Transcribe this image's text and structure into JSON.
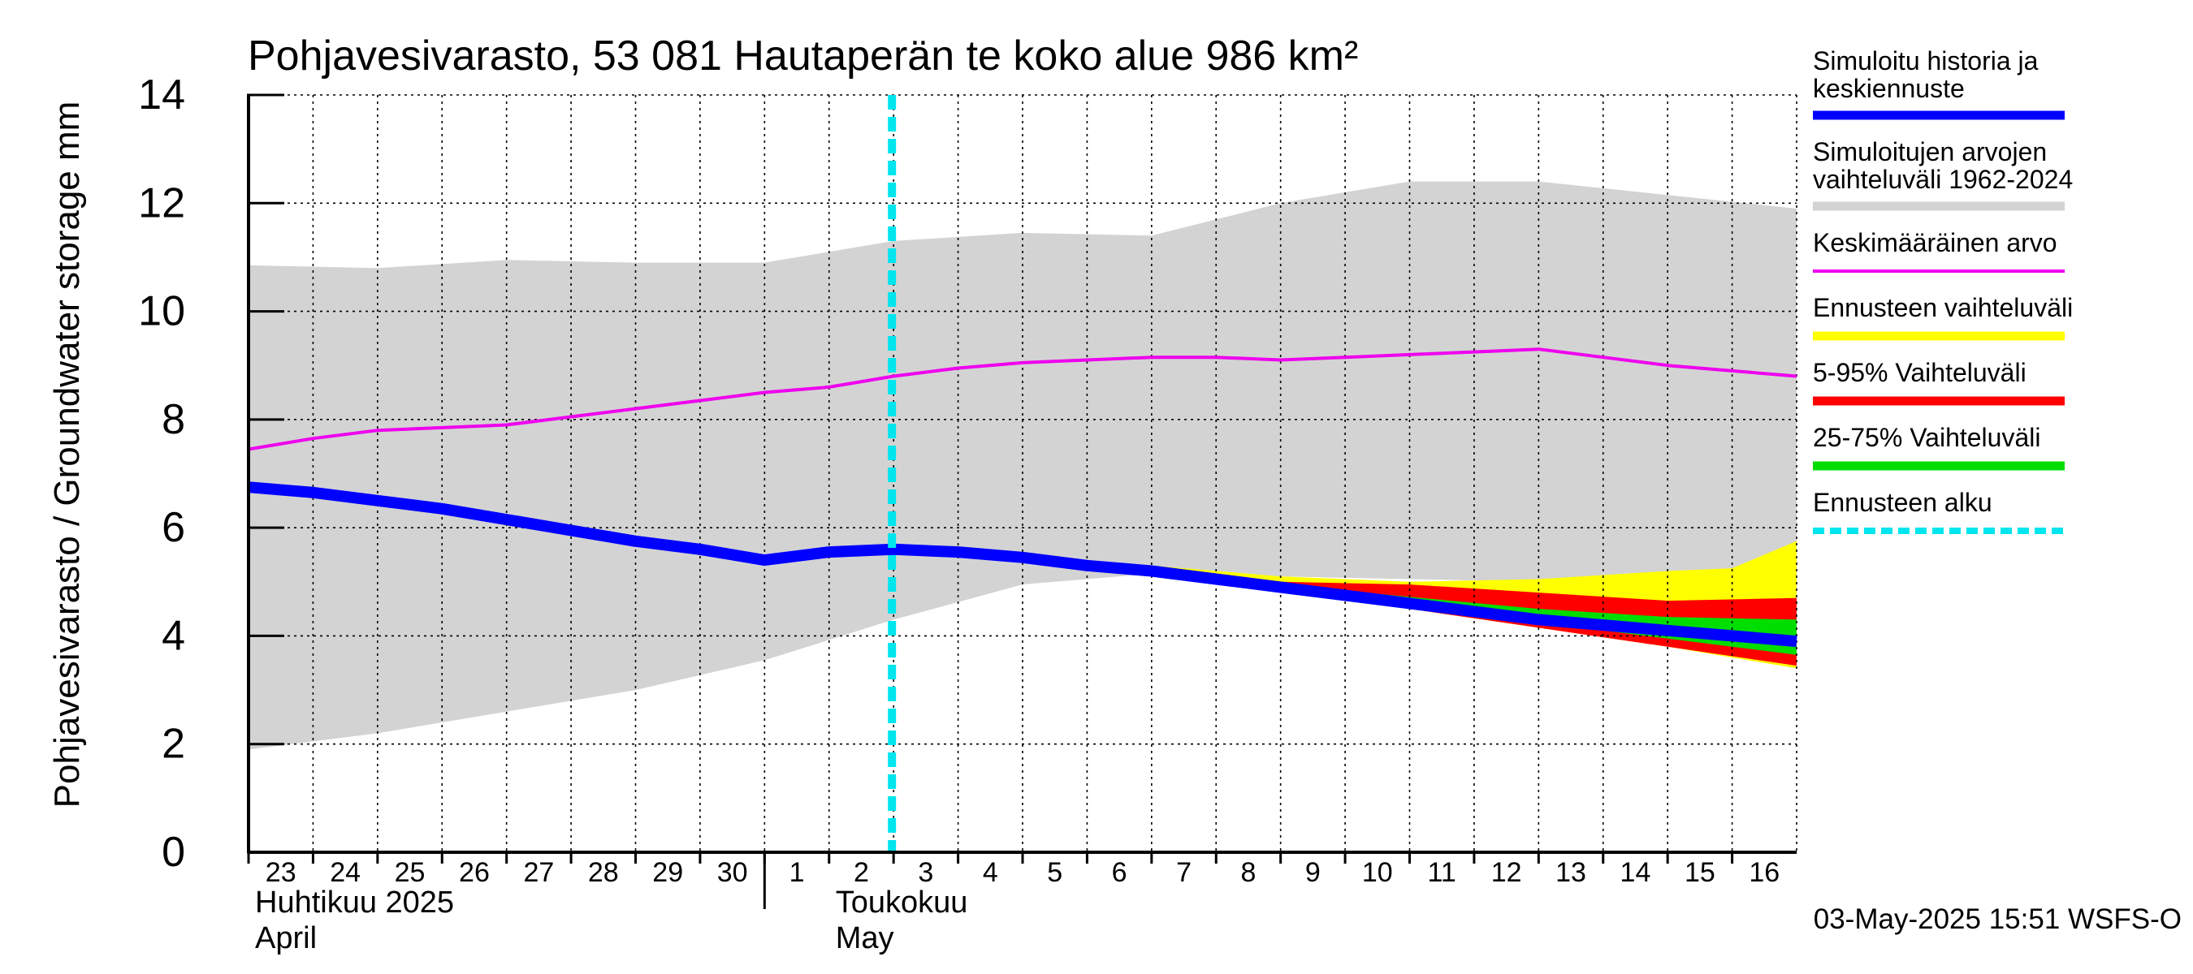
{
  "chart_data": {
    "type": "area",
    "title": "Pohjavesivarasto, 53 081 Hautaperän te koko alue 986 km²",
    "ylabel": "Pohjavesivarasto / Groundwater storage   mm",
    "ylim": [
      0,
      14
    ],
    "yticks": [
      "0",
      "2",
      "4",
      "6",
      "8",
      "10",
      "12",
      "14"
    ],
    "grid": true,
    "legend_position": "right",
    "xlim": [
      "2025-04-23",
      "2025-05-17"
    ],
    "xticks": [
      {
        "date": "2025-04-23",
        "label": "23"
      },
      {
        "date": "2025-04-24",
        "label": "24"
      },
      {
        "date": "2025-04-25",
        "label": "25"
      },
      {
        "date": "2025-04-26",
        "label": "26"
      },
      {
        "date": "2025-04-27",
        "label": "27"
      },
      {
        "date": "2025-04-28",
        "label": "28"
      },
      {
        "date": "2025-04-29",
        "label": "29"
      },
      {
        "date": "2025-04-30",
        "label": "30"
      },
      {
        "date": "2025-05-01",
        "label": "1"
      },
      {
        "date": "2025-05-02",
        "label": "2"
      },
      {
        "date": "2025-05-03",
        "label": "3"
      },
      {
        "date": "2025-05-04",
        "label": "4"
      },
      {
        "date": "2025-05-05",
        "label": "5"
      },
      {
        "date": "2025-05-06",
        "label": "6"
      },
      {
        "date": "2025-05-07",
        "label": "7"
      },
      {
        "date": "2025-05-08",
        "label": "8"
      },
      {
        "date": "2025-05-09",
        "label": "9"
      },
      {
        "date": "2025-05-10",
        "label": "10"
      },
      {
        "date": "2025-05-11",
        "label": "11"
      },
      {
        "date": "2025-05-12",
        "label": "12"
      },
      {
        "date": "2025-05-13",
        "label": "13"
      },
      {
        "date": "2025-05-14",
        "label": "14"
      },
      {
        "date": "2025-05-15",
        "label": "15"
      },
      {
        "date": "2025-05-16",
        "label": "16"
      }
    ],
    "month_labels": [
      {
        "date": "2025-04-23",
        "line1": "Huhtikuu  2025",
        "line2": "April"
      },
      {
        "date": "2025-05-02",
        "line1": "Toukokuu",
        "line2": "May"
      }
    ],
    "month_divider": "2025-05-01",
    "forecast_start": "2025-05-03",
    "timestamp": "03-May-2025 15:51 WSFS-O",
    "series": [
      {
        "name": "Simuloitujen arvojen vaihteluväli 1962-2024",
        "kind": "band",
        "color": "#d3d3d3",
        "x": [
          "2025-04-23",
          "2025-04-25",
          "2025-04-27",
          "2025-04-29",
          "2025-05-01",
          "2025-05-03",
          "2025-05-05",
          "2025-05-07",
          "2025-05-09",
          "2025-05-11",
          "2025-05-13",
          "2025-05-15",
          "2025-05-17"
        ],
        "lower": [
          1.9,
          2.2,
          2.6,
          3.0,
          3.55,
          4.3,
          4.95,
          5.15,
          5.1,
          5.05,
          5.0,
          5.05,
          5.0
        ],
        "upper": [
          10.85,
          10.8,
          10.95,
          10.9,
          10.9,
          11.3,
          11.45,
          11.4,
          12.0,
          12.4,
          12.4,
          12.15,
          11.9
        ]
      },
      {
        "name": "Ennusteen vaihteluväli",
        "kind": "band",
        "color": "#ffff00",
        "x": [
          "2025-05-03",
          "2025-05-05",
          "2025-05-07",
          "2025-05-09",
          "2025-05-11",
          "2025-05-13",
          "2025-05-15",
          "2025-05-16",
          "2025-05-17"
        ],
        "lower": [
          5.6,
          5.4,
          5.15,
          4.85,
          4.5,
          4.15,
          3.8,
          3.6,
          3.4
        ],
        "upper": [
          5.6,
          5.45,
          5.3,
          5.1,
          5.0,
          5.05,
          5.2,
          5.25,
          5.75
        ]
      },
      {
        "name": "5-95% Vaihteluväli",
        "kind": "band",
        "color": "#ff0000",
        "x": [
          "2025-05-03",
          "2025-05-05",
          "2025-05-07",
          "2025-05-09",
          "2025-05-11",
          "2025-05-13",
          "2025-05-15",
          "2025-05-17"
        ],
        "lower": [
          5.6,
          5.4,
          5.15,
          4.85,
          4.5,
          4.15,
          3.8,
          3.45
        ],
        "upper": [
          5.6,
          5.42,
          5.2,
          5.0,
          4.95,
          4.8,
          4.65,
          4.7
        ]
      },
      {
        "name": "25-75% Vaihteluväli",
        "kind": "band",
        "color": "#00dd00",
        "x": [
          "2025-05-03",
          "2025-05-05",
          "2025-05-07",
          "2025-05-09",
          "2025-05-11",
          "2025-05-13",
          "2025-05-15",
          "2025-05-17"
        ],
        "lower": [
          5.6,
          5.4,
          5.15,
          4.88,
          4.57,
          4.25,
          3.95,
          3.65
        ],
        "upper": [
          5.6,
          5.41,
          5.17,
          4.95,
          4.72,
          4.5,
          4.35,
          4.3
        ]
      },
      {
        "name": "Keskimääräinen arvo",
        "kind": "line",
        "color": "#ee00ee",
        "x": [
          "2025-04-23",
          "2025-04-24",
          "2025-04-25",
          "2025-04-26",
          "2025-04-27",
          "2025-04-28",
          "2025-04-29",
          "2025-04-30",
          "2025-05-01",
          "2025-05-02",
          "2025-05-03",
          "2025-05-04",
          "2025-05-05",
          "2025-05-06",
          "2025-05-07",
          "2025-05-08",
          "2025-05-09",
          "2025-05-10",
          "2025-05-11",
          "2025-05-12",
          "2025-05-13",
          "2025-05-14",
          "2025-05-15",
          "2025-05-16",
          "2025-05-17"
        ],
        "values": [
          7.45,
          7.65,
          7.8,
          7.85,
          7.9,
          8.05,
          8.2,
          8.35,
          8.5,
          8.6,
          8.8,
          8.95,
          9.05,
          9.1,
          9.15,
          9.15,
          9.1,
          9.15,
          9.2,
          9.25,
          9.3,
          9.15,
          9.0,
          8.9,
          8.8
        ]
      },
      {
        "name": "Simuloitu historia ja keskiennuste",
        "kind": "line",
        "color": "#0000ff",
        "x": [
          "2025-04-23",
          "2025-04-24",
          "2025-04-25",
          "2025-04-26",
          "2025-04-27",
          "2025-04-28",
          "2025-04-29",
          "2025-04-30",
          "2025-05-01",
          "2025-05-02",
          "2025-05-03",
          "2025-05-04",
          "2025-05-05",
          "2025-05-06",
          "2025-05-07",
          "2025-05-08",
          "2025-05-09",
          "2025-05-10",
          "2025-05-11",
          "2025-05-12",
          "2025-05-13",
          "2025-05-14",
          "2025-05-15",
          "2025-05-16",
          "2025-05-17"
        ],
        "values": [
          6.75,
          6.65,
          6.5,
          6.35,
          6.15,
          5.95,
          5.75,
          5.6,
          5.4,
          5.55,
          5.6,
          5.55,
          5.45,
          5.3,
          5.2,
          5.05,
          4.9,
          4.75,
          4.6,
          4.45,
          4.3,
          4.2,
          4.1,
          4.0,
          3.9
        ]
      }
    ],
    "legend": [
      {
        "line1": "Simuloitu historia ja",
        "line2": "keskiennuste",
        "color": "#0000ff",
        "style": "solid-thick"
      },
      {
        "line1": "Simuloitujen arvojen",
        "line2": "vaihteluväli 1962-2024",
        "color": "#d3d3d3",
        "style": "solid-thick"
      },
      {
        "line1": "Keskimääräinen arvo",
        "line2": "",
        "color": "#ee00ee",
        "style": "solid-thin"
      },
      {
        "line1": "Ennusteen vaihteluväli",
        "line2": "",
        "color": "#ffff00",
        "style": "solid-thick"
      },
      {
        "line1": "5-95% Vaihteluväli",
        "line2": "",
        "color": "#ff0000",
        "style": "solid-thick"
      },
      {
        "line1": "25-75% Vaihteluväli",
        "line2": "",
        "color": "#00dd00",
        "style": "solid-thick"
      },
      {
        "line1": "Ennusteen alku",
        "line2": "",
        "color": "#00e5ee",
        "style": "dashed"
      }
    ]
  }
}
